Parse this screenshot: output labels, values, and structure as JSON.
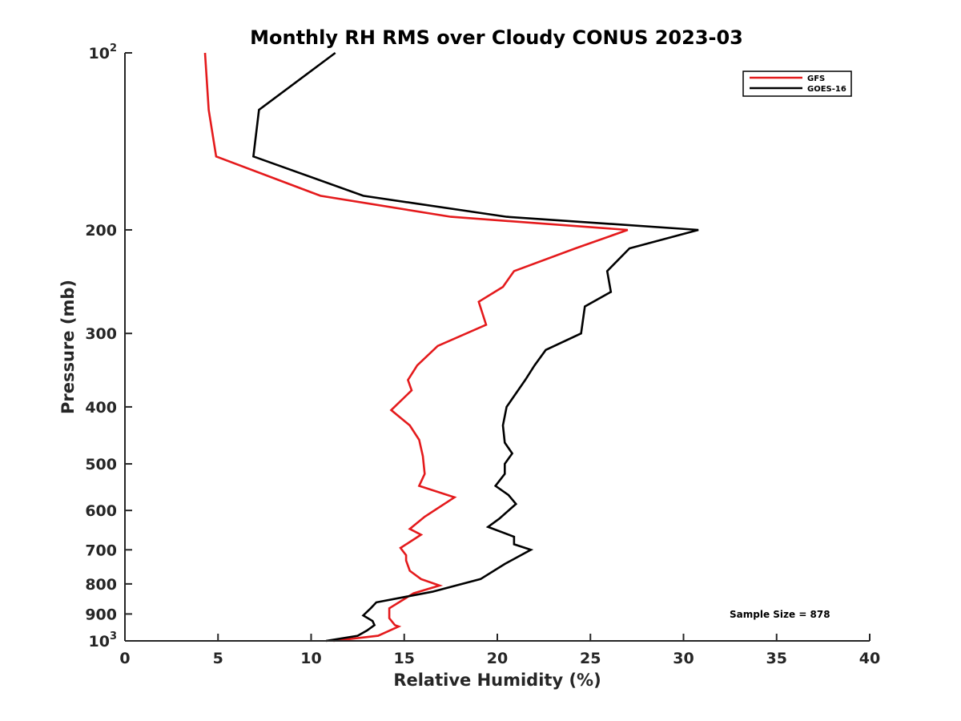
{
  "chart_data": {
    "type": "line",
    "title": "Monthly RH RMS over Cloudy CONUS  2023-03",
    "xlabel": "Relative Humidity (%)",
    "ylabel": "Pressure (mb)",
    "xlim": [
      0,
      40
    ],
    "ylim": [
      100,
      1000
    ],
    "y_scale": "log",
    "y_reversed": true,
    "grid": false,
    "legend_position": "top-right",
    "x_ticks": [
      {
        "value": 0,
        "label": "0"
      },
      {
        "value": 5,
        "label": "5"
      },
      {
        "value": 10,
        "label": "10"
      },
      {
        "value": 15,
        "label": "15"
      },
      {
        "value": 20,
        "label": "20"
      },
      {
        "value": 25,
        "label": "25"
      },
      {
        "value": 30,
        "label": "30"
      },
      {
        "value": 35,
        "label": "35"
      },
      {
        "value": 40,
        "label": "40"
      }
    ],
    "y_ticks": [
      {
        "value": 100,
        "base": "10",
        "exp": "2"
      },
      {
        "value": 200,
        "base": "200",
        "exp": ""
      },
      {
        "value": 300,
        "base": "300",
        "exp": ""
      },
      {
        "value": 400,
        "base": "400",
        "exp": ""
      },
      {
        "value": 500,
        "base": "500",
        "exp": ""
      },
      {
        "value": 600,
        "base": "600",
        "exp": ""
      },
      {
        "value": 700,
        "base": "700",
        "exp": ""
      },
      {
        "value": 800,
        "base": "800",
        "exp": ""
      },
      {
        "value": 900,
        "base": "900",
        "exp": ""
      },
      {
        "value": 1000,
        "base": "10",
        "exp": "3"
      }
    ],
    "series": [
      {
        "name": "GFS",
        "color": "#e41a1c",
        "points": [
          {
            "rh": 4.3,
            "p": 100
          },
          {
            "rh": 4.5,
            "p": 125
          },
          {
            "rh": 4.9,
            "p": 150
          },
          {
            "rh": 10.5,
            "p": 175
          },
          {
            "rh": 17.5,
            "p": 190
          },
          {
            "rh": 27.0,
            "p": 200
          },
          {
            "rh": 24.2,
            "p": 215
          },
          {
            "rh": 20.9,
            "p": 235
          },
          {
            "rh": 20.3,
            "p": 250
          },
          {
            "rh": 19.0,
            "p": 265
          },
          {
            "rh": 19.4,
            "p": 290
          },
          {
            "rh": 16.8,
            "p": 315
          },
          {
            "rh": 15.7,
            "p": 340
          },
          {
            "rh": 15.2,
            "p": 360
          },
          {
            "rh": 15.4,
            "p": 375
          },
          {
            "rh": 14.3,
            "p": 405
          },
          {
            "rh": 15.3,
            "p": 430
          },
          {
            "rh": 15.8,
            "p": 455
          },
          {
            "rh": 16.0,
            "p": 485
          },
          {
            "rh": 16.1,
            "p": 520
          },
          {
            "rh": 15.8,
            "p": 545
          },
          {
            "rh": 17.7,
            "p": 570
          },
          {
            "rh": 16.1,
            "p": 615
          },
          {
            "rh": 15.3,
            "p": 645
          },
          {
            "rh": 15.9,
            "p": 660
          },
          {
            "rh": 14.8,
            "p": 695
          },
          {
            "rh": 15.1,
            "p": 715
          },
          {
            "rh": 15.1,
            "p": 730
          },
          {
            "rh": 15.3,
            "p": 760
          },
          {
            "rh": 15.9,
            "p": 785
          },
          {
            "rh": 16.9,
            "p": 805
          },
          {
            "rh": 15.5,
            "p": 830
          },
          {
            "rh": 14.2,
            "p": 880
          },
          {
            "rh": 14.2,
            "p": 915
          },
          {
            "rh": 14.5,
            "p": 940
          },
          {
            "rh": 14.7,
            "p": 945
          },
          {
            "rh": 13.6,
            "p": 980
          },
          {
            "rh": 11.2,
            "p": 1000
          }
        ]
      },
      {
        "name": "GOES-16",
        "color": "#000000",
        "points": [
          {
            "rh": 11.3,
            "p": 100
          },
          {
            "rh": 7.2,
            "p": 125
          },
          {
            "rh": 6.9,
            "p": 150
          },
          {
            "rh": 12.8,
            "p": 175
          },
          {
            "rh": 20.5,
            "p": 190
          },
          {
            "rh": 30.8,
            "p": 200
          },
          {
            "rh": 27.1,
            "p": 215
          },
          {
            "rh": 25.9,
            "p": 235
          },
          {
            "rh": 26.1,
            "p": 255
          },
          {
            "rh": 24.7,
            "p": 270
          },
          {
            "rh": 24.5,
            "p": 300
          },
          {
            "rh": 22.6,
            "p": 320
          },
          {
            "rh": 22.0,
            "p": 340
          },
          {
            "rh": 21.5,
            "p": 360
          },
          {
            "rh": 20.5,
            "p": 400
          },
          {
            "rh": 20.3,
            "p": 430
          },
          {
            "rh": 20.4,
            "p": 460
          },
          {
            "rh": 20.8,
            "p": 480
          },
          {
            "rh": 20.4,
            "p": 500
          },
          {
            "rh": 20.4,
            "p": 520
          },
          {
            "rh": 19.9,
            "p": 545
          },
          {
            "rh": 20.6,
            "p": 565
          },
          {
            "rh": 21.0,
            "p": 585
          },
          {
            "rh": 20.1,
            "p": 620
          },
          {
            "rh": 19.5,
            "p": 640
          },
          {
            "rh": 20.9,
            "p": 665
          },
          {
            "rh": 20.9,
            "p": 685
          },
          {
            "rh": 21.8,
            "p": 700
          },
          {
            "rh": 20.4,
            "p": 740
          },
          {
            "rh": 19.1,
            "p": 785
          },
          {
            "rh": 16.5,
            "p": 825
          },
          {
            "rh": 13.5,
            "p": 860
          },
          {
            "rh": 13.2,
            "p": 880
          },
          {
            "rh": 12.8,
            "p": 905
          },
          {
            "rh": 13.3,
            "p": 925
          },
          {
            "rh": 13.4,
            "p": 940
          },
          {
            "rh": 13.0,
            "p": 960
          },
          {
            "rh": 12.5,
            "p": 980
          },
          {
            "rh": 10.8,
            "p": 1000
          }
        ]
      }
    ],
    "annotations": [
      {
        "text": "Sample Size = 878"
      }
    ]
  }
}
